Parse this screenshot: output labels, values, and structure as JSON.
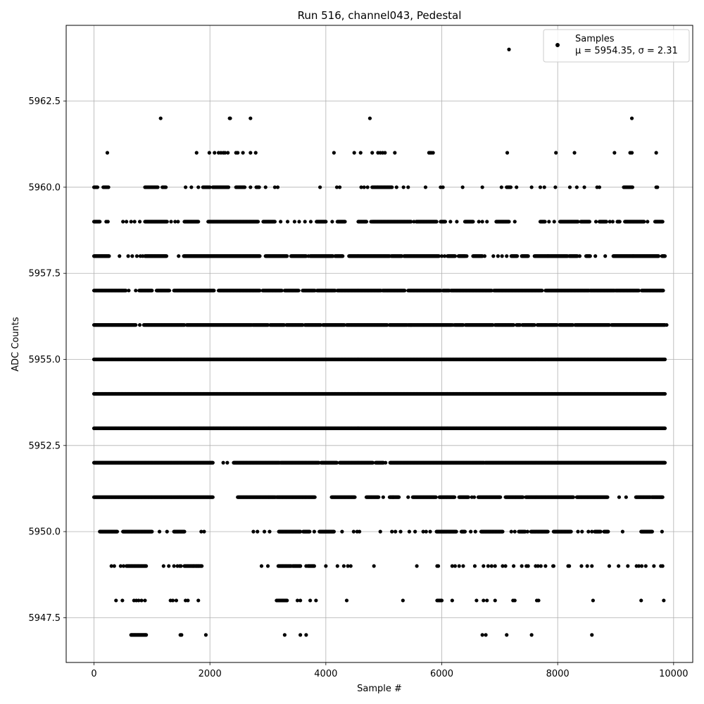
{
  "chart_data": {
    "type": "scatter",
    "title": "Run 516, channel043, Pedestal",
    "xlabel": "Sample #",
    "ylabel": "ADC Counts",
    "xlim": [
      -480,
      10330
    ],
    "ylim": [
      5946.2,
      5964.7
    ],
    "xticks": [
      0,
      2000,
      4000,
      6000,
      8000,
      10000
    ],
    "xtick_labels": [
      "0",
      "2000",
      "4000",
      "6000",
      "8000",
      "10000"
    ],
    "yticks": [
      5947.5,
      5950.0,
      5952.5,
      5955.0,
      5957.5,
      5960.0,
      5962.5
    ],
    "ytick_labels": [
      "5947.5",
      "5950.0",
      "5952.5",
      "5955.0",
      "5957.5",
      "5960.0",
      "5962.5"
    ],
    "grid": true,
    "legend_position": "top-right",
    "marker_color": "#000000",
    "series": [
      {
        "name": "Samples",
        "legend_detail": "μ = 5954.35, σ = 2.31",
        "n_samples": 9850,
        "levels": [
          {
            "y": 5964,
            "segments": [],
            "points": [
              7160
            ]
          },
          {
            "y": 5962,
            "segments": [],
            "points": [
              1150,
              2340,
              2350,
              2700,
              4760,
              9280
            ]
          },
          {
            "y": 5961,
            "segments": [],
            "points": [
              230,
              1770,
              1990,
              2080,
              2150,
              2190,
              2230,
              2260,
              2310,
              2450,
              2480,
              2570,
              2700,
              2790,
              4140,
              4490,
              4600,
              4800,
              4900,
              4940,
              4980,
              5020,
              5190,
              5780,
              5800,
              5820,
              5850,
              7130,
              7970,
              8290,
              8980,
              9250,
              9280,
              9700
            ]
          },
          {
            "y": 5960,
            "segments": [
              [
                0,
                60
              ],
              [
                160,
                250
              ],
              [
                880,
                1100
              ],
              [
                1180,
                1240
              ],
              [
                1880,
                2000
              ],
              [
                2050,
                2320
              ],
              [
                2450,
                2600
              ],
              [
                2800,
                2850
              ],
              [
                4800,
                5140
              ],
              [
                7120,
                7190
              ],
              [
                9140,
                9290
              ]
            ],
            "points": [
              1580,
              1680,
              1800,
              2700,
              2960,
              3120,
              3170,
              3900,
              4190,
              4240,
              4610,
              4660,
              4720,
              4890,
              5220,
              5340,
              5420,
              5720,
              5980,
              6020,
              6360,
              6700,
              7030,
              7290,
              7550,
              7700,
              7770,
              7960,
              8210,
              8330,
              8460,
              8680,
              8720,
              9700,
              9720
            ]
          },
          {
            "y": 5959,
            "segments": [
              [
                0,
                100
              ],
              [
                880,
                1260
              ],
              [
                1560,
                1800
              ],
              [
                1970,
                2830
              ],
              [
                2920,
                3120
              ],
              [
                3840,
                4000
              ],
              [
                4200,
                4330
              ],
              [
                4560,
                4700
              ],
              [
                4800,
                5470
              ],
              [
                5560,
                5910
              ],
              [
                5980,
                6060
              ],
              [
                6400,
                6540
              ],
              [
                6940,
                7160
              ],
              [
                7700,
                7780
              ],
              [
                8040,
                8350
              ],
              [
                8400,
                8550
              ],
              [
                8720,
                8840
              ],
              [
                9030,
                9070
              ],
              [
                9160,
                9490
              ],
              [
                9680,
                9810
              ]
            ],
            "points": [
              210,
              240,
              500,
              560,
              640,
              700,
              790,
              1330,
              1400,
              1450,
              3220,
              3340,
              3460,
              3540,
              3640,
              3740,
              4110,
              4780,
              5520,
              6150,
              6260,
              6640,
              6700,
              6780,
              7260,
              7850,
              7940,
              8660,
              8900,
              8950,
              9550
            ]
          },
          {
            "y": 5958,
            "segments": [
              [
                0,
                260
              ],
              [
                880,
                1250
              ],
              [
                1550,
                2860
              ],
              [
                2960,
                3330
              ],
              [
                3400,
                3660
              ],
              [
                3730,
                4120
              ],
              [
                4160,
                4290
              ],
              [
                4400,
                5100
              ],
              [
                5130,
                5310
              ],
              [
                5350,
                5950
              ],
              [
                6100,
                6230
              ],
              [
                6290,
                6410
              ],
              [
                6540,
                6700
              ],
              [
                7200,
                7300
              ],
              [
                7380,
                7490
              ],
              [
                7600,
                8170
              ],
              [
                8200,
                8340
              ],
              [
                8490,
                8560
              ],
              [
                8960,
                9740
              ],
              [
                9800,
                9850
              ]
            ],
            "points": [
              440,
              590,
              660,
              740,
              800,
              840,
              1460,
              3700,
              6000,
              6050,
              6430,
              6740,
              6890,
              6970,
              7040,
              7120,
              7830,
              8380,
              8650,
              8820,
              9300
            ]
          },
          {
            "y": 5957,
            "segments": [
              [
                0,
                550
              ],
              [
                780,
                1000
              ],
              [
                1080,
                1300
              ],
              [
                1380,
                2070
              ],
              [
                2150,
                2860
              ],
              [
                2910,
                3240
              ],
              [
                3290,
                3530
              ],
              [
                3600,
                3810
              ],
              [
                3850,
                4160
              ],
              [
                4200,
                4950
              ],
              [
                4980,
                5360
              ],
              [
                5420,
                5980
              ],
              [
                6020,
                6130
              ],
              [
                6160,
                6860
              ],
              [
                6900,
                7730
              ],
              [
                7790,
                8540
              ],
              [
                8560,
                8980
              ],
              [
                9000,
                9400
              ],
              [
                9450,
                9820
              ]
            ],
            "points": [
              600,
              720
            ]
          },
          {
            "y": 5956,
            "segments": [
              [
                0,
                720
              ],
              [
                860,
                1560
              ],
              [
                1600,
                2720
              ],
              [
                2740,
                3000
              ],
              [
                3040,
                3280
              ],
              [
                3320,
                3600
              ],
              [
                3640,
                3910
              ],
              [
                3950,
                4320
              ],
              [
                4360,
                5060
              ],
              [
                5100,
                5400
              ],
              [
                5420,
                6170
              ],
              [
                6220,
                6370
              ],
              [
                6410,
                6880
              ],
              [
                6920,
                7240
              ],
              [
                7290,
                7350
              ],
              [
                7390,
                7600
              ],
              [
                7650,
                7990
              ],
              [
                8030,
                8260
              ],
              [
                8300,
                8890
              ],
              [
                8930,
                9850
              ]
            ],
            "points": [
              790,
              5470,
              6190,
              7560,
              9880
            ]
          },
          {
            "y": 5955,
            "segments": [
              [
                0,
                9850
              ]
            ],
            "points": []
          },
          {
            "y": 5954,
            "segments": [
              [
                0,
                9850
              ]
            ],
            "points": []
          },
          {
            "y": 5953,
            "segments": [
              [
                0,
                9850
              ]
            ],
            "points": []
          },
          {
            "y": 5952,
            "segments": [
              [
                0,
                2050
              ],
              [
                2410,
                3200
              ],
              [
                3220,
                3880
              ],
              [
                3920,
                4190
              ],
              [
                4240,
                4810
              ],
              [
                4860,
                4990
              ],
              [
                5110,
                6730
              ],
              [
                6750,
                9850
              ]
            ],
            "points": [
              2230,
              2300,
              4990,
              5030
            ]
          },
          {
            "y": 5951,
            "segments": [
              [
                0,
                2050
              ],
              [
                2480,
                3130
              ],
              [
                3150,
                3810
              ],
              [
                4100,
                4500
              ],
              [
                4700,
                4910
              ],
              [
                5100,
                5260
              ],
              [
                5500,
                5900
              ],
              [
                5960,
                6220
              ],
              [
                6300,
                6460
              ],
              [
                6630,
                7010
              ],
              [
                7100,
                7400
              ],
              [
                7450,
                8270
              ],
              [
                8330,
                8860
              ],
              [
                9350,
                9600
              ],
              [
                9620,
                9810
              ]
            ],
            "points": [
              4990,
              5160,
              5420,
              6520,
              6560,
              9060,
              9180
            ]
          },
          {
            "y": 5950,
            "segments": [
              [
                100,
                400
              ],
              [
                500,
                1000
              ],
              [
                1380,
                1560
              ],
              [
                3190,
                3560
              ],
              [
                3610,
                3720
              ],
              [
                3890,
                4140
              ],
              [
                5910,
                6250
              ],
              [
                6340,
                6400
              ],
              [
                6680,
                7050
              ],
              [
                7330,
                7440
              ],
              [
                7540,
                7830
              ],
              [
                7930,
                8230
              ],
              [
                8640,
                8740
              ],
              [
                8800,
                8870
              ],
              [
                9440,
                9630
              ]
            ],
            "points": [
              1130,
              1260,
              1850,
              1900,
              2750,
              2820,
              2940,
              3030,
              3800,
              4280,
              4480,
              4540,
              4580,
              4940,
              5140,
              5200,
              5290,
              5440,
              5540,
              5680,
              5730,
              5800,
              6500,
              6580,
              7200,
              7260,
              7480,
              8350,
              8420,
              8530,
              8590,
              9120,
              9800
            ]
          },
          {
            "y": 5949,
            "segments": [
              [
                560,
                900
              ],
              [
                1560,
                1860
              ],
              [
                3180,
                3400
              ],
              [
                3430,
                3560
              ],
              [
                3690,
                3800
              ]
            ],
            "points": [
              300,
              350,
              460,
              510,
              1200,
              1290,
              1380,
              1440,
              1480,
              1500,
              1710,
              1770,
              1800,
              2890,
              3000,
              3560,
              3660,
              4000,
              4200,
              4310,
              4380,
              4430,
              4830,
              5570,
              5920,
              5940,
              6180,
              6230,
              6300,
              6370,
              6570,
              6720,
              6800,
              6860,
              6920,
              7050,
              7100,
              7240,
              7380,
              7460,
              7490,
              7620,
              7660,
              7710,
              7790,
              7920,
              7930,
              8180,
              8200,
              8410,
              8510,
              8590,
              8890,
              9050,
              9210,
              9360,
              9400,
              9450,
              9520,
              9660,
              9780,
              9810
            ]
          },
          {
            "y": 5948,
            "segments": [
              [
                3150,
                3330
              ],
              [
                5920,
                6000
              ]
            ],
            "points": [
              380,
              490,
              690,
              730,
              770,
              820,
              880,
              1320,
              1360,
              1420,
              1580,
              1620,
              1800,
              3510,
              3560,
              3730,
              3830,
              4360,
              5330,
              6180,
              6600,
              6720,
              6780,
              6920,
              7230,
              7260,
              7640,
              7670,
              8610,
              9440,
              9830
            ]
          },
          {
            "y": 5947,
            "segments": [
              [
                640,
                900
              ]
            ],
            "points": [
              1490,
              1510,
              1930,
              3290,
              3560,
              3660,
              6700,
              6760,
              7120,
              7550,
              8590
            ]
          }
        ]
      }
    ]
  }
}
